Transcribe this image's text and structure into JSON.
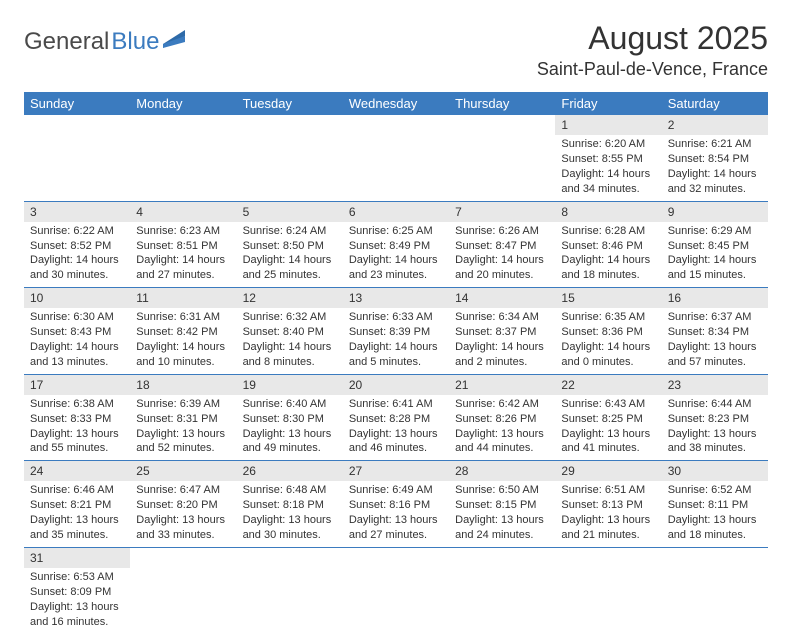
{
  "logo": {
    "part1": "General",
    "part2": "Blue"
  },
  "title": "August 2025",
  "location": "Saint-Paul-de-Vence, France",
  "colors": {
    "header_bg": "#3b7bbf",
    "header_text": "#ffffff",
    "daynum_bg": "#e8e8e8",
    "row_border": "#3b7bbf",
    "text": "#333333",
    "logo_gray": "#4a4a4a",
    "logo_blue": "#3b7bbf"
  },
  "weekdays": [
    "Sunday",
    "Monday",
    "Tuesday",
    "Wednesday",
    "Thursday",
    "Friday",
    "Saturday"
  ],
  "weeks": [
    [
      null,
      null,
      null,
      null,
      null,
      {
        "n": "1",
        "sr": "6:20 AM",
        "ss": "8:55 PM",
        "dl": "14 hours and 34 minutes."
      },
      {
        "n": "2",
        "sr": "6:21 AM",
        "ss": "8:54 PM",
        "dl": "14 hours and 32 minutes."
      }
    ],
    [
      {
        "n": "3",
        "sr": "6:22 AM",
        "ss": "8:52 PM",
        "dl": "14 hours and 30 minutes."
      },
      {
        "n": "4",
        "sr": "6:23 AM",
        "ss": "8:51 PM",
        "dl": "14 hours and 27 minutes."
      },
      {
        "n": "5",
        "sr": "6:24 AM",
        "ss": "8:50 PM",
        "dl": "14 hours and 25 minutes."
      },
      {
        "n": "6",
        "sr": "6:25 AM",
        "ss": "8:49 PM",
        "dl": "14 hours and 23 minutes."
      },
      {
        "n": "7",
        "sr": "6:26 AM",
        "ss": "8:47 PM",
        "dl": "14 hours and 20 minutes."
      },
      {
        "n": "8",
        "sr": "6:28 AM",
        "ss": "8:46 PM",
        "dl": "14 hours and 18 minutes."
      },
      {
        "n": "9",
        "sr": "6:29 AM",
        "ss": "8:45 PM",
        "dl": "14 hours and 15 minutes."
      }
    ],
    [
      {
        "n": "10",
        "sr": "6:30 AM",
        "ss": "8:43 PM",
        "dl": "14 hours and 13 minutes."
      },
      {
        "n": "11",
        "sr": "6:31 AM",
        "ss": "8:42 PM",
        "dl": "14 hours and 10 minutes."
      },
      {
        "n": "12",
        "sr": "6:32 AM",
        "ss": "8:40 PM",
        "dl": "14 hours and 8 minutes."
      },
      {
        "n": "13",
        "sr": "6:33 AM",
        "ss": "8:39 PM",
        "dl": "14 hours and 5 minutes."
      },
      {
        "n": "14",
        "sr": "6:34 AM",
        "ss": "8:37 PM",
        "dl": "14 hours and 2 minutes."
      },
      {
        "n": "15",
        "sr": "6:35 AM",
        "ss": "8:36 PM",
        "dl": "14 hours and 0 minutes."
      },
      {
        "n": "16",
        "sr": "6:37 AM",
        "ss": "8:34 PM",
        "dl": "13 hours and 57 minutes."
      }
    ],
    [
      {
        "n": "17",
        "sr": "6:38 AM",
        "ss": "8:33 PM",
        "dl": "13 hours and 55 minutes."
      },
      {
        "n": "18",
        "sr": "6:39 AM",
        "ss": "8:31 PM",
        "dl": "13 hours and 52 minutes."
      },
      {
        "n": "19",
        "sr": "6:40 AM",
        "ss": "8:30 PM",
        "dl": "13 hours and 49 minutes."
      },
      {
        "n": "20",
        "sr": "6:41 AM",
        "ss": "8:28 PM",
        "dl": "13 hours and 46 minutes."
      },
      {
        "n": "21",
        "sr": "6:42 AM",
        "ss": "8:26 PM",
        "dl": "13 hours and 44 minutes."
      },
      {
        "n": "22",
        "sr": "6:43 AM",
        "ss": "8:25 PM",
        "dl": "13 hours and 41 minutes."
      },
      {
        "n": "23",
        "sr": "6:44 AM",
        "ss": "8:23 PM",
        "dl": "13 hours and 38 minutes."
      }
    ],
    [
      {
        "n": "24",
        "sr": "6:46 AM",
        "ss": "8:21 PM",
        "dl": "13 hours and 35 minutes."
      },
      {
        "n": "25",
        "sr": "6:47 AM",
        "ss": "8:20 PM",
        "dl": "13 hours and 33 minutes."
      },
      {
        "n": "26",
        "sr": "6:48 AM",
        "ss": "8:18 PM",
        "dl": "13 hours and 30 minutes."
      },
      {
        "n": "27",
        "sr": "6:49 AM",
        "ss": "8:16 PM",
        "dl": "13 hours and 27 minutes."
      },
      {
        "n": "28",
        "sr": "6:50 AM",
        "ss": "8:15 PM",
        "dl": "13 hours and 24 minutes."
      },
      {
        "n": "29",
        "sr": "6:51 AM",
        "ss": "8:13 PM",
        "dl": "13 hours and 21 minutes."
      },
      {
        "n": "30",
        "sr": "6:52 AM",
        "ss": "8:11 PM",
        "dl": "13 hours and 18 minutes."
      }
    ],
    [
      {
        "n": "31",
        "sr": "6:53 AM",
        "ss": "8:09 PM",
        "dl": "13 hours and 16 minutes."
      },
      null,
      null,
      null,
      null,
      null,
      null
    ]
  ],
  "labels": {
    "sunrise": "Sunrise:",
    "sunset": "Sunset:",
    "daylight": "Daylight:"
  }
}
